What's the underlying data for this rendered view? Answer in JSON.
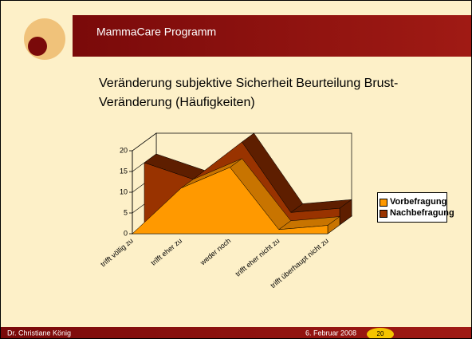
{
  "header": {
    "title": "MammaCare Programm"
  },
  "footer": {
    "author": "Dr. Christiane König",
    "date": "6. Februar 2008",
    "page": "20"
  },
  "chart_data": {
    "type": "area3d",
    "title": "Veränderung subjektive Sicherheit Beurteilung Brust-Veränderung (Häufigkeiten)",
    "categories": [
      "trifft völlig zu",
      "trifft eher zu",
      "weder noch",
      "trifft eher nicht zu",
      "trifft überhaupt nicht zu"
    ],
    "series": [
      {
        "name": "Vorbefragung",
        "color": "#ff9900",
        "side_color": "#c87400",
        "values": [
          0,
          11,
          16,
          1,
          2
        ]
      },
      {
        "name": "Nachbefragung",
        "color": "#993300",
        "side_color": "#5e1e00",
        "values": [
          15,
          11,
          20,
          3,
          4
        ]
      }
    ],
    "ylim": [
      0,
      20
    ],
    "yticks": [
      0,
      5,
      10,
      15,
      20
    ],
    "legend": "right"
  }
}
